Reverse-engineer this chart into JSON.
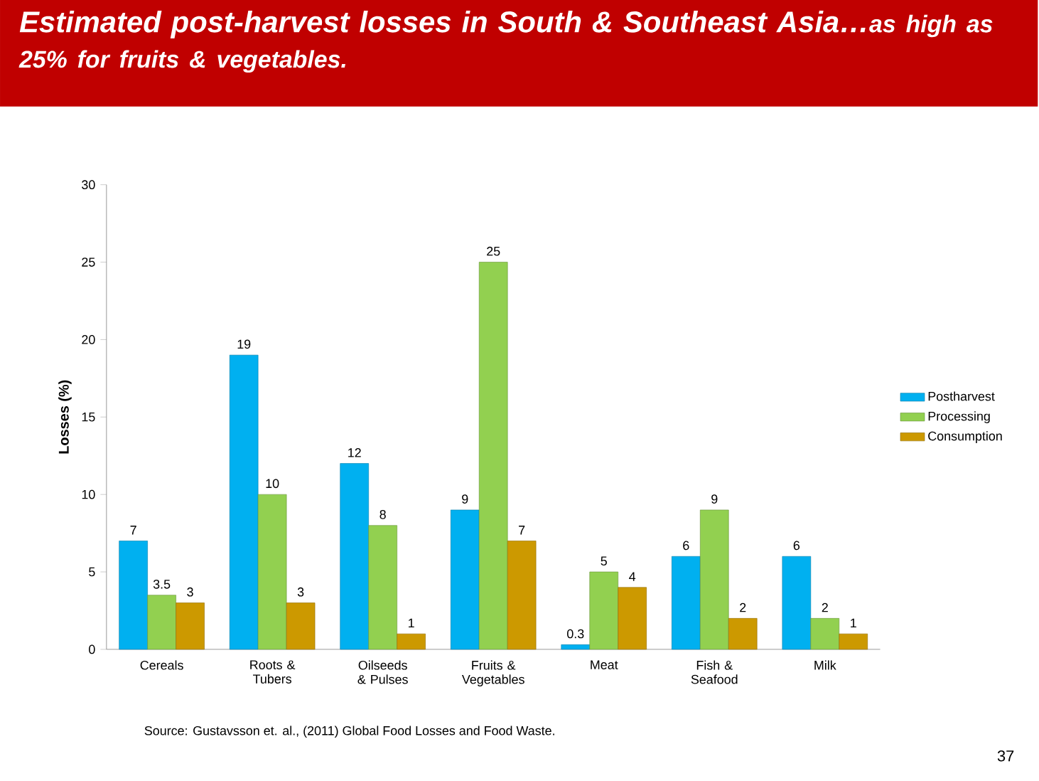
{
  "chart_data": {
    "type": "bar",
    "title": "Estimated post-harvest losses in South & Southeast Asia…",
    "subtitle": "as high as 25% for fruits & vegetables.",
    "ylabel": "Losses (%)",
    "categories": [
      "Cereals",
      "Roots & Tubers",
      "Oilseeds & Pulses",
      "Fruits & Vegetables",
      "Meat",
      "Fish & Seafood",
      "Milk"
    ],
    "series": [
      {
        "name": "Postharvest",
        "color": "#00b0f0",
        "values": [
          7,
          19,
          12,
          9,
          0.3,
          6,
          6
        ]
      },
      {
        "name": "Processing",
        "color": "#92d050",
        "values": [
          3.5,
          10,
          8,
          25,
          5,
          9,
          2
        ]
      },
      {
        "name": "Consumption",
        "color": "#cc9900",
        "values": [
          3,
          3,
          1,
          7,
          4,
          2,
          1
        ]
      }
    ],
    "ylim": [
      0,
      30
    ],
    "yticks": [
      0,
      5,
      10,
      15,
      20,
      25,
      30
    ],
    "grid": false,
    "legend": "right",
    "data_labels": true,
    "annotations": [
      "Source: Gustavsson et. al., (2011) Global Food Losses and Food Waste.",
      "37"
    ]
  }
}
